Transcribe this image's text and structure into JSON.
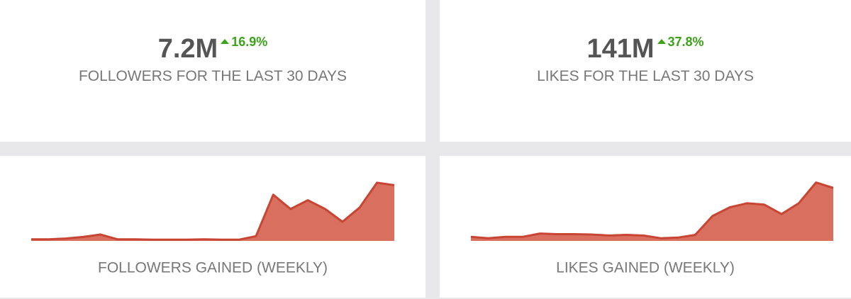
{
  "cards": [
    {
      "value": "7.2M",
      "change": "16.9%",
      "label": "FOLLOWERS FOR THE LAST 30 DAYS"
    },
    {
      "value": "141M",
      "change": "37.8%",
      "label": "LIKES FOR THE LAST 30 DAYS"
    }
  ],
  "chart_data": [
    {
      "type": "area",
      "title": "FOLLOWERS GAINED (WEEKLY)",
      "color": "#d9705f",
      "values": [
        2,
        2,
        3,
        5,
        8,
        2,
        2,
        1.5,
        1.5,
        1.5,
        2,
        1.5,
        1.5,
        6,
        58,
        40,
        51,
        40,
        24,
        42,
        73,
        70
      ],
      "ylim": [
        0,
        80
      ]
    },
    {
      "type": "area",
      "title": "LIKES GAINED (WEEKLY)",
      "color": "#d9705f",
      "values": [
        6,
        4,
        6,
        6,
        11,
        10,
        10,
        9.5,
        8,
        9,
        8,
        4,
        5,
        9,
        37,
        50,
        56,
        54,
        40,
        56,
        87,
        79
      ],
      "ylim": [
        0,
        95
      ]
    }
  ]
}
